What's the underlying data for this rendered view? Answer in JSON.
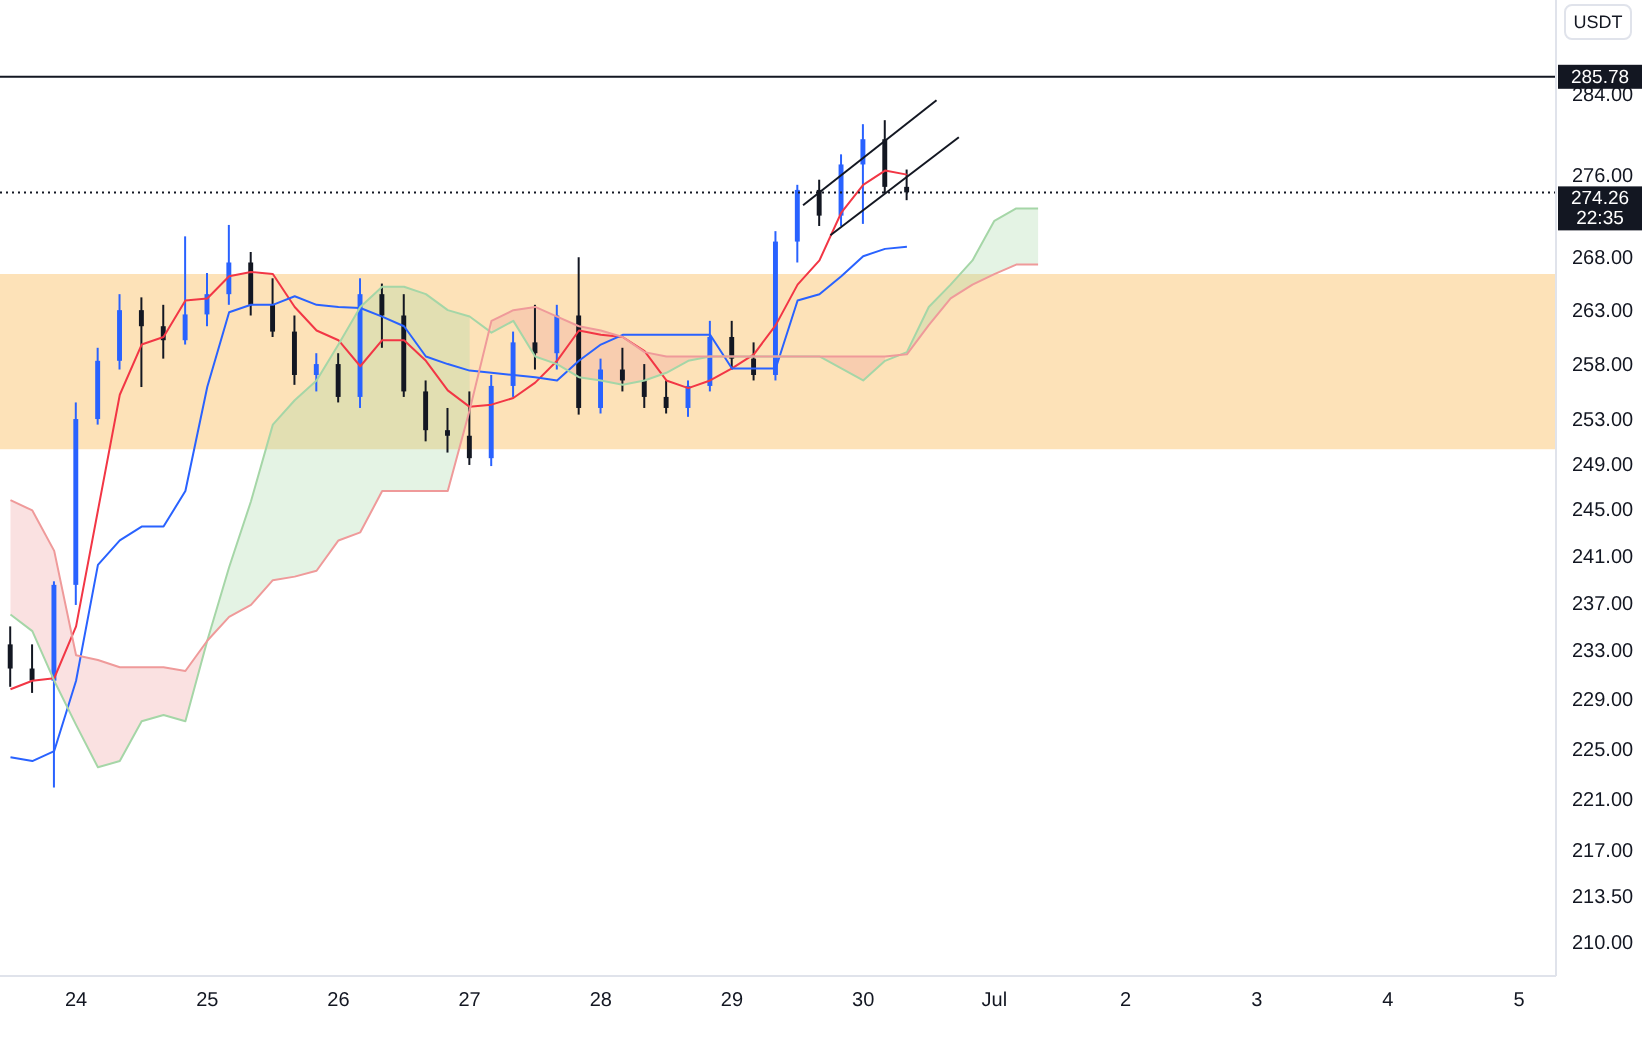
{
  "chart_data": {
    "type": "candlestick",
    "ylabel": "USDT",
    "x": [
      "--06-23T12:00",
      "--06-23T16:00",
      "--06-23T20:00",
      "--06-24T00:00",
      "--06-24T04:00",
      "--06-24T08:00",
      "--06-24T12:00",
      "--06-24T16:00",
      "--06-24T20:00",
      "--06-25T00:00",
      "--06-25T04:00",
      "--06-25T08:00",
      "--06-25T12:00",
      "--06-25T16:00",
      "--06-25T20:00",
      "--06-26T00:00",
      "--06-26T04:00",
      "--06-26T08:00",
      "--06-26T12:00",
      "--06-26T16:00",
      "--06-26T20:00",
      "--06-27T00:00",
      "--06-27T04:00",
      "--06-27T08:00",
      "--06-27T12:00",
      "--06-27T16:00",
      "--06-27T20:00",
      "--06-28T00:00",
      "--06-28T04:00",
      "--06-28T08:00",
      "--06-28T12:00",
      "--06-28T16:00",
      "--06-28T20:00",
      "--06-29T00:00",
      "--06-29T04:00",
      "--06-29T08:00",
      "--06-29T12:00",
      "--06-29T16:00",
      "--06-29T20:00",
      "--06-30T00:00",
      "--06-30T04:00",
      "--06-30T08:00"
    ],
    "ohlc": [
      [
        233.5,
        235.0,
        230.0,
        231.5
      ],
      [
        231.5,
        233.5,
        229.5,
        230.5
      ],
      [
        230.5,
        238.8,
        221.9,
        238.5
      ],
      [
        238.5,
        254.5,
        236.8,
        253.0
      ],
      [
        253.0,
        259.5,
        252.5,
        258.3
      ],
      [
        258.3,
        264.5,
        257.5,
        263.0
      ],
      [
        263.0,
        264.2,
        255.9,
        261.5
      ],
      [
        261.5,
        263.5,
        258.5,
        260.2
      ],
      [
        260.2,
        270.0,
        259.8,
        262.6
      ],
      [
        262.6,
        266.5,
        261.5,
        264.5
      ],
      [
        264.5,
        271.1,
        263.5,
        267.5
      ],
      [
        267.5,
        268.5,
        262.5,
        263.5
      ],
      [
        263.5,
        266.0,
        260.5,
        261.0
      ],
      [
        261.0,
        262.5,
        256.1,
        257.0
      ],
      [
        257.0,
        259.0,
        255.5,
        258.0
      ],
      [
        258.0,
        259.0,
        254.5,
        255.0
      ],
      [
        255.0,
        266.0,
        254.0,
        264.5
      ],
      [
        264.5,
        265.5,
        259.5,
        262.5
      ],
      [
        262.5,
        264.5,
        255.0,
        255.5
      ],
      [
        255.5,
        256.5,
        251.0,
        252.0
      ],
      [
        252.0,
        254.0,
        250.0,
        251.5
      ],
      [
        251.5,
        255.5,
        248.9,
        249.5
      ],
      [
        249.5,
        257.0,
        248.8,
        256.0
      ],
      [
        256.0,
        261.0,
        255.0,
        260.0
      ],
      [
        260.0,
        263.5,
        257.5,
        259.0
      ],
      [
        259.0,
        263.5,
        257.5,
        262.5
      ],
      [
        262.5,
        268.0,
        253.4,
        254.0
      ],
      [
        254.0,
        258.5,
        253.5,
        257.5
      ],
      [
        257.5,
        259.5,
        255.5,
        256.5
      ],
      [
        256.5,
        258.0,
        254.0,
        255.0
      ],
      [
        255.0,
        256.5,
        253.5,
        254.0
      ],
      [
        254.0,
        256.5,
        253.2,
        256.0
      ],
      [
        256.0,
        262.0,
        255.5,
        260.5
      ],
      [
        260.5,
        262.0,
        257.5,
        258.5
      ],
      [
        258.5,
        260.0,
        256.5,
        257.0
      ],
      [
        257.0,
        270.5,
        256.5,
        269.5
      ],
      [
        269.5,
        275.0,
        267.5,
        274.5
      ],
      [
        274.5,
        275.5,
        271.0,
        272.0
      ],
      [
        272.0,
        278.0,
        271.0,
        277.0
      ],
      [
        277.0,
        281.0,
        271.2,
        279.5
      ],
      [
        279.5,
        281.4,
        274.2,
        274.8
      ],
      [
        274.8,
        276.5,
        273.5,
        274.26
      ]
    ],
    "colors": [
      "#131722",
      "#131722",
      "#2962ff",
      "#2962ff",
      "#2962ff",
      "#2962ff",
      "#131722",
      "#131722",
      "#2962ff",
      "#2962ff",
      "#2962ff",
      "#131722",
      "#131722",
      "#131722",
      "#2962ff",
      "#131722",
      "#2962ff",
      "#131722",
      "#131722",
      "#131722",
      "#131722",
      "#131722",
      "#2962ff",
      "#2962ff",
      "#131722",
      "#2962ff",
      "#131722",
      "#2962ff",
      "#131722",
      "#131722",
      "#131722",
      "#2962ff",
      "#2962ff",
      "#131722",
      "#131722",
      "#2962ff",
      "#2962ff",
      "#131722",
      "#2962ff",
      "#2962ff",
      "#131722",
      "#131722"
    ],
    "series": [
      {
        "type": "line",
        "color": "#f23645",
        "values": [
          229.8,
          230.5,
          230.7,
          235.0,
          244.9,
          255.2,
          259.8,
          260.5,
          263.9,
          264.1,
          266.2,
          266.6,
          266.4,
          263.3,
          261.1,
          260.2,
          257.8,
          260.2,
          260.2,
          258.3,
          255.6,
          254.1,
          254.3,
          254.9,
          256.3,
          258.3,
          261.1,
          260.7,
          260.5,
          259.2,
          256.5,
          255.8,
          256.5,
          257.6,
          258.9,
          261.6,
          265.4,
          267.7,
          272.3,
          275.0,
          276.4,
          276.0
        ]
      },
      {
        "type": "line",
        "color": "#2962ff",
        "values": [
          224.3,
          224.0,
          224.8,
          230.5,
          240.2,
          242.3,
          243.5,
          243.5,
          246.6,
          255.9,
          262.8,
          263.5,
          263.5,
          264.3,
          263.5,
          263.3,
          263.2,
          262.4,
          261.5,
          258.7,
          258.0,
          257.4,
          257.2,
          257.0,
          256.8,
          256.5,
          258.3,
          259.8,
          260.7,
          260.7,
          260.7,
          260.7,
          260.7,
          257.6,
          257.6,
          257.6,
          263.9,
          264.5,
          266.2,
          268.1,
          268.8,
          269.0
        ]
      },
      {
        "type": "line",
        "color": "#a5d6a7",
        "x": [
          "--06-23T12:00",
          "--06-23T16:00",
          "--06-23T20:00",
          "--06-24T00:00",
          "--06-24T04:00",
          "--06-24T08:00",
          "--06-24T12:00",
          "--06-24T16:00",
          "--06-24T20:00",
          "--06-25T00:00",
          "--06-25T04:00",
          "--06-25T08:00",
          "--06-25T12:00",
          "--06-25T16:00",
          "--06-25T20:00",
          "--06-26T00:00",
          "--06-26T04:00",
          "--06-26T08:00",
          "--06-26T12:00",
          "--06-26T16:00",
          "--06-26T20:00",
          "--06-27T00:00",
          "--06-27T04:00",
          "--06-27T08:00",
          "--06-27T12:00",
          "--06-27T16:00",
          "--06-27T20:00",
          "--06-28T00:00",
          "--06-28T04:00",
          "--06-28T08:00",
          "--06-28T12:00",
          "--06-28T16:00",
          "--06-28T20:00",
          "--06-29T00:00",
          "--06-29T04:00",
          "--06-29T08:00",
          "--06-29T12:00",
          "--06-29T16:00",
          "--06-29T20:00",
          "--06-30T00:00",
          "--06-30T04:00",
          "--06-30T08:00",
          "--06-30T12:00",
          "--06-30T16:00",
          "--06-30T20:00",
          "--07-01T00:00",
          "--07-01T04:00",
          "--07-01T08:00"
        ],
        "values": [
          236.0,
          234.6,
          230.5,
          226.9,
          223.5,
          224.0,
          227.2,
          227.7,
          227.2,
          233.8,
          240.0,
          245.7,
          252.5,
          254.7,
          256.5,
          259.8,
          263.3,
          265.2,
          265.2,
          264.5,
          263.0,
          262.4,
          260.9,
          262.0,
          258.7,
          258.0,
          256.8,
          256.5,
          256.1,
          256.5,
          257.2,
          258.3,
          258.7,
          258.7,
          258.7,
          258.7,
          258.7,
          258.7,
          257.6,
          256.5,
          258.3,
          259.1,
          263.3,
          265.4,
          267.7,
          271.5,
          272.7,
          272.7
        ],
        "lower": [
          null,
          null,
          null,
          null,
          null,
          null,
          null,
          null,
          null,
          233.8,
          235.8,
          236.8,
          238.9,
          239.2,
          239.7,
          242.3,
          243.0,
          246.6,
          246.6,
          246.6,
          246.6,
          253.8,
          null,
          null,
          null,
          null,
          null,
          null,
          null,
          null,
          null,
          null,
          null,
          null,
          null,
          null,
          null,
          null,
          null,
          null,
          null,
          258.9,
          261.6,
          264.1,
          265.4,
          266.4,
          267.3,
          267.3
        ],
        "upper": [
          null,
          null,
          null,
          null,
          null,
          null,
          null,
          null,
          null,
          233.8,
          240.0,
          245.7,
          252.5,
          254.7,
          256.5,
          259.8,
          263.3,
          265.2,
          265.2,
          264.5,
          263.0,
          262.4,
          null,
          null,
          null,
          null,
          null,
          null,
          null,
          null,
          null,
          null,
          null,
          null,
          null,
          null,
          null,
          null,
          null,
          null,
          null,
          259.1,
          263.3,
          265.4,
          267.7,
          271.5,
          272.7,
          272.7
        ]
      },
      {
        "type": "line",
        "color": "#ef9a9a",
        "x": [
          "--06-23T12:00",
          "--06-23T16:00",
          "--06-23T20:00",
          "--06-24T00:00",
          "--06-24T04:00",
          "--06-24T08:00",
          "--06-24T12:00",
          "--06-24T16:00",
          "--06-24T20:00",
          "--06-25T00:00",
          "--06-25T04:00",
          "--06-25T08:00",
          "--06-25T12:00",
          "--06-25T16:00",
          "--06-25T20:00",
          "--06-26T00:00",
          "--06-26T04:00",
          "--06-26T08:00",
          "--06-26T12:00",
          "--06-26T16:00",
          "--06-26T20:00",
          "--06-27T00:00",
          "--06-27T04:00",
          "--06-27T08:00",
          "--06-27T12:00",
          "--06-27T16:00",
          "--06-27T20:00",
          "--06-28T00:00",
          "--06-28T04:00",
          "--06-28T08:00",
          "--06-28T12:00",
          "--06-28T16:00",
          "--06-28T20:00",
          "--06-29T00:00",
          "--06-29T04:00",
          "--06-29T08:00",
          "--06-29T12:00",
          "--06-29T16:00",
          "--06-29T20:00",
          "--06-30T00:00",
          "--06-30T04:00",
          "--06-30T08:00",
          "--06-30T12:00",
          "--06-30T16:00",
          "--06-30T20:00",
          "--07-01T00:00",
          "--07-01T04:00",
          "--07-01T08:00"
        ],
        "values": [
          245.8,
          244.9,
          241.4,
          232.6,
          232.2,
          231.6,
          231.6,
          231.6,
          231.3,
          233.8,
          235.8,
          236.8,
          238.9,
          239.2,
          239.7,
          242.3,
          243.0,
          246.6,
          246.6,
          246.6,
          246.6,
          253.8,
          262.0,
          263.0,
          263.3,
          262.4,
          261.5,
          261.1,
          260.5,
          259.1,
          258.7,
          258.7,
          258.7,
          258.7,
          258.7,
          258.7,
          258.7,
          258.7,
          258.7,
          258.7,
          258.7,
          258.9,
          261.6,
          264.1,
          265.4,
          266.4,
          267.3,
          267.3
        ],
        "lower": [
          236.0,
          234.6,
          230.5,
          226.9,
          223.5,
          224.0,
          227.2,
          227.7,
          227.2,
          233.8,
          null,
          null,
          null,
          null,
          null,
          null,
          null,
          null,
          null,
          null,
          null,
          null,
          260.9,
          262.0,
          258.7,
          258.0,
          256.8,
          256.5,
          256.1,
          256.5,
          257.2,
          258.3,
          258.7,
          258.7,
          258.7,
          258.7,
          258.7,
          258.7,
          257.6,
          256.5,
          258.3,
          null,
          null,
          null,
          null,
          null,
          null,
          null
        ],
        "upper": [
          245.8,
          244.9,
          241.4,
          232.6,
          232.2,
          231.6,
          231.6,
          231.6,
          231.3,
          233.8,
          null,
          null,
          null,
          null,
          null,
          null,
          null,
          null,
          null,
          null,
          null,
          null,
          262.0,
          263.0,
          263.3,
          262.4,
          261.5,
          261.1,
          260.5,
          259.1,
          258.7,
          258.7,
          258.7,
          258.7,
          258.7,
          258.7,
          258.7,
          258.7,
          258.7,
          258.7,
          258.7,
          null,
          null,
          null,
          null,
          null,
          null,
          null
        ]
      },
      {
        "type": "line",
        "color": "#131722",
        "x": [
          "--06-29T13:00",
          "--06-30T13:25"
        ],
        "values": [
          273.0,
          283.4
        ]
      },
      {
        "type": "line",
        "color": "#131722",
        "x": [
          "--06-29T18:00",
          "--06-30T17:30"
        ],
        "values": [
          270.1,
          279.7
        ]
      }
    ],
    "xlim": [
      "--06-23T10:05",
      "--07-05T06:45"
    ],
    "xticks": [
      {
        "value": "--06-24",
        "label": "24"
      },
      {
        "value": "--06-25",
        "label": "25"
      },
      {
        "value": "--06-26",
        "label": "26"
      },
      {
        "value": "--06-27",
        "label": "27"
      },
      {
        "value": "--06-28",
        "label": "28"
      },
      {
        "value": "--06-29",
        "label": "29"
      },
      {
        "value": "--06-30",
        "label": "30"
      },
      {
        "value": "--07-01",
        "label": "Jul"
      },
      {
        "value": "--07-02",
        "label": "2"
      },
      {
        "value": "--07-03",
        "label": "3"
      },
      {
        "value": "--07-04",
        "label": "4"
      },
      {
        "value": "--07-05",
        "label": "5"
      }
    ],
    "ylim": [
      207.5,
      293.7
    ],
    "yticks": [
      {
        "value": 284,
        "label": "284.00"
      },
      {
        "value": 276,
        "label": "276.00"
      },
      {
        "value": 268,
        "label": "268.00"
      },
      {
        "value": 263,
        "label": "263.00"
      },
      {
        "value": 258,
        "label": "258.00"
      },
      {
        "value": 253,
        "label": "253.00"
      },
      {
        "value": 249,
        "label": "249.00"
      },
      {
        "value": 245,
        "label": "245.00"
      },
      {
        "value": 241,
        "label": "241.00"
      },
      {
        "value": 237,
        "label": "237.00"
      },
      {
        "value": 233,
        "label": "233.00"
      },
      {
        "value": 229,
        "label": "229.00"
      },
      {
        "value": 225,
        "label": "225.00"
      },
      {
        "value": 221,
        "label": "221.00"
      },
      {
        "value": 217,
        "label": "217.00"
      },
      {
        "value": 213.5,
        "label": "213.50"
      },
      {
        "value": 210,
        "label": "210.00"
      }
    ],
    "log": true,
    "ref_lines": [
      {
        "axis": "y",
        "value": 285.78,
        "label": "285.78",
        "color": "#131722",
        "line_style": "solid"
      },
      {
        "axis": "y",
        "value": 274.26,
        "label": "274.26\n22:35",
        "color": "#131722",
        "line_style": "dotted"
      }
    ],
    "bands": [
      {
        "axis": "y",
        "from": 250.3,
        "to": 266.4,
        "color": "#fde2b8"
      }
    ]
  }
}
